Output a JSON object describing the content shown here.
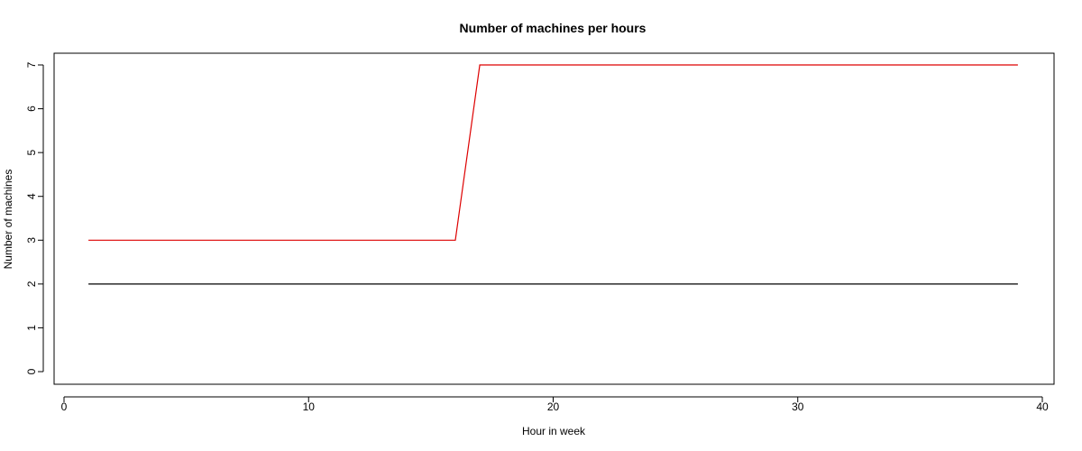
{
  "chart_data": {
    "type": "line",
    "title": "Number of machines per hours",
    "xlabel": "Hour in week",
    "ylabel": "Number of machines",
    "xlim": [
      0,
      40
    ],
    "ylim": [
      0,
      7
    ],
    "x_ticks": [
      0,
      10,
      20,
      30,
      40
    ],
    "y_ticks": [
      0,
      1,
      2,
      3,
      4,
      5,
      6,
      7
    ],
    "grid": false,
    "legend": "none",
    "series": [
      {
        "color": "#000000",
        "x": [
          1,
          39
        ],
        "y": [
          2,
          2
        ]
      },
      {
        "color": "#dd0000",
        "x": [
          1,
          16,
          17,
          39
        ],
        "y": [
          3,
          3,
          7,
          7
        ]
      }
    ]
  }
}
